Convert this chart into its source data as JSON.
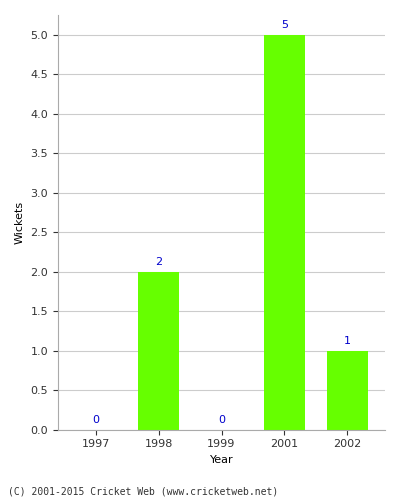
{
  "years": [
    "1997",
    "1998",
    "1999",
    "2001",
    "2002"
  ],
  "values": [
    0,
    2,
    0,
    5,
    1
  ],
  "bar_color": "#66ff00",
  "bar_edgecolor": "#66ff00",
  "xlabel": "Year",
  "ylabel": "Wickets",
  "ylim": [
    0,
    5.25
  ],
  "yticks": [
    0.0,
    0.5,
    1.0,
    1.5,
    2.0,
    2.5,
    3.0,
    3.5,
    4.0,
    4.5,
    5.0
  ],
  "value_label_color": "#0000cc",
  "value_label_fontsize": 8,
  "axis_label_fontsize": 8,
  "tick_fontsize": 8,
  "footnote": "(C) 2001-2015 Cricket Web (www.cricketweb.net)",
  "footnote_fontsize": 7,
  "background_color": "#ffffff",
  "plot_background_color": "#ffffff",
  "grid_color": "#cccccc",
  "bar_width": 0.65
}
